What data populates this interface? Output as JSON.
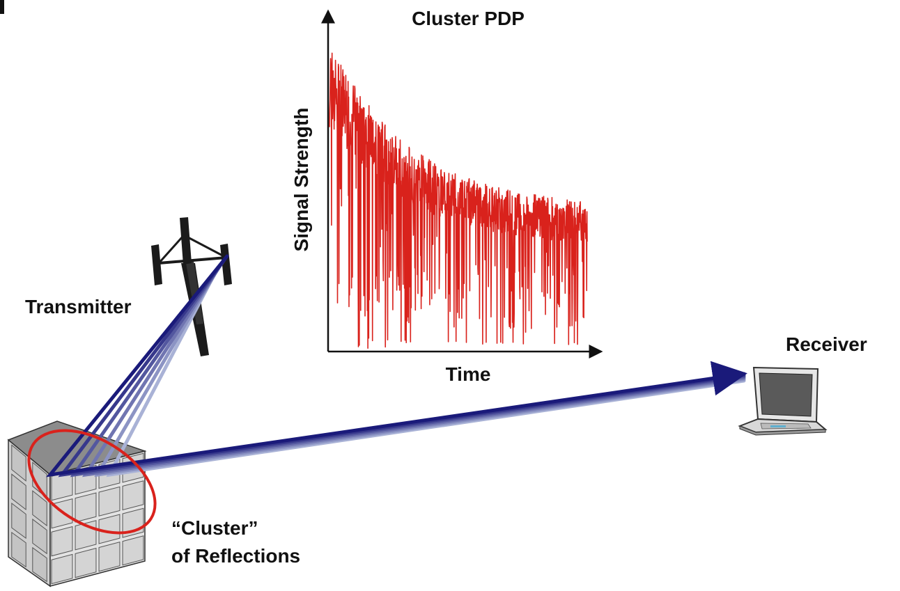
{
  "labels": {
    "transmitter": "Transmitter",
    "receiver": "Receiver",
    "cluster_line1": "“Cluster”",
    "cluster_line2": "of Reflections"
  },
  "inset_plot": {
    "title": "Cluster PDP",
    "xlabel": "Time",
    "ylabel": "Signal Strength",
    "trace_color": "#d9221c",
    "trend": "exponential decay with deep fading nulls"
  },
  "colors": {
    "ray_dark": "#1a1a7a",
    "ray_light": "#a9b2d6",
    "cluster_ellipse": "#d9221c",
    "building_face": "#d9d9d9",
    "building_roof": "#8c8c8c"
  },
  "icons": [
    "transmitter-tower-icon",
    "laptop-receiver-icon",
    "building-icon"
  ]
}
